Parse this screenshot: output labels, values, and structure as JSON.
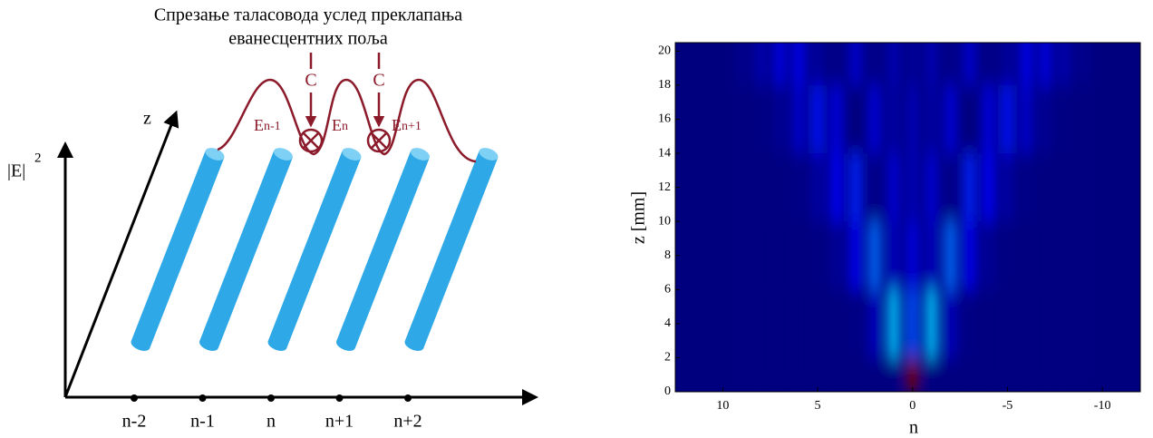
{
  "diagram": {
    "title_lines": [
      "Спрезање таласовода услед преклапања",
      "еванесцентних поља"
    ],
    "y_axis_label": "|E|",
    "y_axis_exponent": "2",
    "z_axis_label": "z",
    "site_labels": [
      "n-2",
      "n-1",
      "n",
      "n+1",
      "n+2"
    ],
    "coupling_labels": [
      "C",
      "C"
    ],
    "field_labels": [
      {
        "base": "E",
        "sub": "n-1"
      },
      {
        "base": "E",
        "sub": "n"
      },
      {
        "base": "E",
        "sub": "n+1"
      }
    ]
  },
  "chart_data": {
    "type": "heatmap",
    "x_label": "n",
    "y_label": "z [mm]",
    "colormap": "jet",
    "x": [
      -9,
      -8,
      -7,
      -6,
      -5,
      -4,
      -3,
      -2,
      -1,
      0,
      1,
      2,
      3,
      4,
      5,
      6,
      7,
      8,
      9
    ],
    "y": [
      0,
      4,
      8,
      12,
      16,
      20
    ],
    "values": [
      [
        0,
        0,
        0,
        0,
        0,
        0,
        0,
        0,
        0,
        1,
        0,
        0,
        0,
        0,
        0,
        0,
        0,
        0,
        0
      ],
      [
        0,
        0,
        0,
        0,
        0,
        0.0002,
        0.005,
        0.066,
        0.325,
        0.207,
        0.325,
        0.066,
        0.005,
        0.0002,
        0,
        0,
        0,
        0,
        0
      ],
      [
        0,
        0,
        0,
        0.0002,
        0.003,
        0.026,
        0.118,
        0.234,
        0.068,
        0.103,
        0.068,
        0.234,
        0.118,
        0.026,
        0.003,
        0.0002,
        0,
        0,
        0
      ],
      [
        0,
        0,
        0.001,
        0.007,
        0.041,
        0.128,
        0.157,
        0.013,
        0.089,
        0.058,
        0.089,
        0.013,
        0.157,
        0.128,
        0.041,
        0.007,
        0.001,
        0,
        0
      ],
      [
        0.0004,
        0.004,
        0.023,
        0.082,
        0.148,
        0.1,
        0.0001,
        0.094,
        0.041,
        0.059,
        0.041,
        0.094,
        0.0001,
        0.1,
        0.148,
        0.082,
        0.023,
        0.004,
        0.0004
      ],
      [
        0.016,
        0.05,
        0.103,
        0.114,
        0.035,
        0.011,
        0.085,
        0.013,
        0.055,
        0.029,
        0.055,
        0.013,
        0.085,
        0.011,
        0.035,
        0.114,
        0.103,
        0.05,
        0.016
      ]
    ],
    "xlim": [
      12.5,
      -12
    ],
    "ylim": [
      0,
      20.5
    ],
    "xticks": [
      10,
      5,
      0,
      -5,
      -10
    ],
    "yticks": [
      0,
      2,
      4,
      6,
      8,
      10,
      12,
      14,
      16,
      18,
      20
    ]
  }
}
